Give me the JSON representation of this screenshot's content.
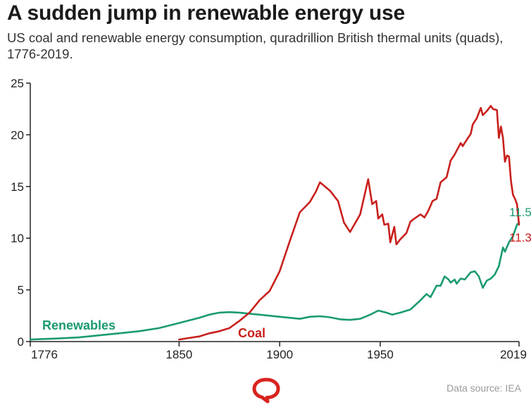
{
  "chart_data": {
    "type": "line",
    "title": "A sudden jump in renewable energy use",
    "subtitle": "US coal and renewable energy consumption, quradrillion British thermal units (quads), 1776-2019.",
    "xlim": [
      1776,
      2019
    ],
    "ylim": [
      0,
      25
    ],
    "x_ticks": [
      1776,
      1850,
      1900,
      1950,
      2019
    ],
    "y_ticks": [
      0,
      5,
      10,
      15,
      20,
      25
    ],
    "grid": false,
    "series": [
      {
        "name": "Renewables",
        "color": "#1a9a72",
        "end_label": "11.5",
        "x": [
          1776,
          1790,
          1800,
          1810,
          1820,
          1830,
          1840,
          1850,
          1860,
          1865,
          1870,
          1875,
          1880,
          1885,
          1890,
          1895,
          1900,
          1905,
          1910,
          1915,
          1920,
          1925,
          1930,
          1935,
          1940,
          1945,
          1949,
          1953,
          1956,
          1960,
          1965,
          1970,
          1973,
          1975,
          1978,
          1980,
          1982,
          1984,
          1985,
          1987,
          1988,
          1990,
          1992,
          1995,
          1997,
          1999,
          2001,
          2003,
          2005,
          2007,
          2009,
          2011,
          2012,
          2014,
          2016,
          2018,
          2019
        ],
        "values": [
          0.2,
          0.3,
          0.4,
          0.6,
          0.8,
          1.0,
          1.3,
          1.8,
          2.3,
          2.6,
          2.8,
          2.85,
          2.8,
          2.7,
          2.6,
          2.5,
          2.4,
          2.3,
          2.2,
          2.4,
          2.45,
          2.35,
          2.15,
          2.1,
          2.2,
          2.6,
          3.0,
          2.8,
          2.6,
          2.8,
          3.1,
          4.0,
          4.6,
          4.3,
          5.4,
          5.4,
          6.3,
          6.0,
          5.7,
          6.0,
          5.6,
          6.1,
          6.0,
          6.7,
          6.8,
          6.3,
          5.2,
          5.9,
          6.1,
          6.5,
          7.3,
          9.1,
          8.7,
          9.6,
          10.2,
          11.3,
          11.5
        ]
      },
      {
        "name": "Coal",
        "color": "#c8201d",
        "end_label": "11.3",
        "x": [
          1850,
          1855,
          1860,
          1865,
          1870,
          1875,
          1880,
          1885,
          1890,
          1895,
          1900,
          1905,
          1910,
          1915,
          1918,
          1920,
          1925,
          1929,
          1932,
          1935,
          1940,
          1944,
          1946,
          1948,
          1949,
          1951,
          1952,
          1954,
          1955,
          1957,
          1958,
          1960,
          1963,
          1965,
          1967,
          1970,
          1972,
          1974,
          1976,
          1978,
          1980,
          1983,
          1985,
          1987,
          1990,
          1991,
          1993,
          1995,
          1996,
          1998,
          2000,
          2001,
          2003,
          2005,
          2006,
          2008,
          2009,
          2010,
          2011,
          2012,
          2013,
          2014,
          2015,
          2016,
          2017,
          2018,
          2019
        ],
        "values": [
          0.2,
          0.35,
          0.5,
          0.8,
          1.0,
          1.3,
          2.0,
          2.8,
          4.0,
          4.9,
          6.8,
          9.7,
          12.5,
          13.5,
          14.5,
          15.4,
          14.6,
          13.6,
          11.5,
          10.6,
          12.3,
          15.7,
          13.3,
          13.6,
          11.9,
          12.3,
          11.3,
          11.4,
          9.6,
          11.1,
          9.4,
          9.9,
          10.5,
          11.6,
          11.9,
          12.3,
          12.0,
          12.7,
          13.6,
          13.8,
          15.4,
          15.9,
          17.5,
          18.1,
          19.2,
          18.9,
          19.5,
          20.1,
          21.0,
          21.6,
          22.6,
          21.9,
          22.3,
          22.8,
          22.5,
          22.4,
          19.7,
          20.8,
          19.7,
          17.4,
          18.0,
          17.9,
          15.5,
          14.2,
          13.8,
          13.3,
          11.3
        ]
      }
    ],
    "annotations": {
      "coal_label": "Coal",
      "renewables_label": "Renewables"
    }
  },
  "footer": {
    "source": "Data source: IEA",
    "logo_icon": "conversation-speech-bubble-logo"
  }
}
